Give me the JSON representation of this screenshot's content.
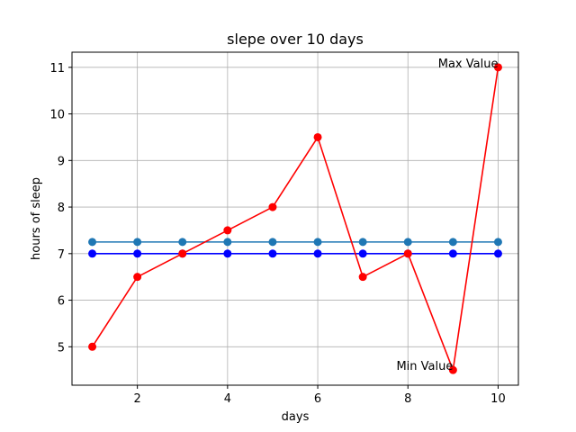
{
  "chart_data": {
    "type": "line",
    "title": "slepe over 10 days",
    "xlabel": "days",
    "ylabel": "hours of sleep",
    "xlim": [
      0.55,
      10.45
    ],
    "ylim": [
      4.175,
      11.325
    ],
    "xticks": [
      2,
      4,
      6,
      8,
      10
    ],
    "yticks": [
      5,
      6,
      7,
      8,
      9,
      10,
      11
    ],
    "grid": true,
    "x": [
      1,
      2,
      3,
      4,
      5,
      6,
      7,
      8,
      9,
      10
    ],
    "series": [
      {
        "values": [
          7.25,
          7.25,
          7.25,
          7.25,
          7.25,
          7.25,
          7.25,
          7.25,
          7.25,
          7.25
        ],
        "color": "#1f77b4",
        "marker": "circle"
      },
      {
        "values": [
          7,
          7,
          7,
          7,
          7,
          7,
          7,
          7,
          7,
          7
        ],
        "color": "#0000ff",
        "marker": "circle"
      },
      {
        "values": [
          5,
          6.5,
          7,
          7.5,
          8,
          9.5,
          6.5,
          7,
          4.5,
          11
        ],
        "color": "#ff0000",
        "marker": "circle"
      }
    ],
    "annotations": [
      {
        "text": "Max Value",
        "x": 10,
        "y": 11,
        "anchor": "end"
      },
      {
        "text": "Min Value",
        "x": 9,
        "y": 4.5,
        "anchor": "end"
      }
    ]
  }
}
